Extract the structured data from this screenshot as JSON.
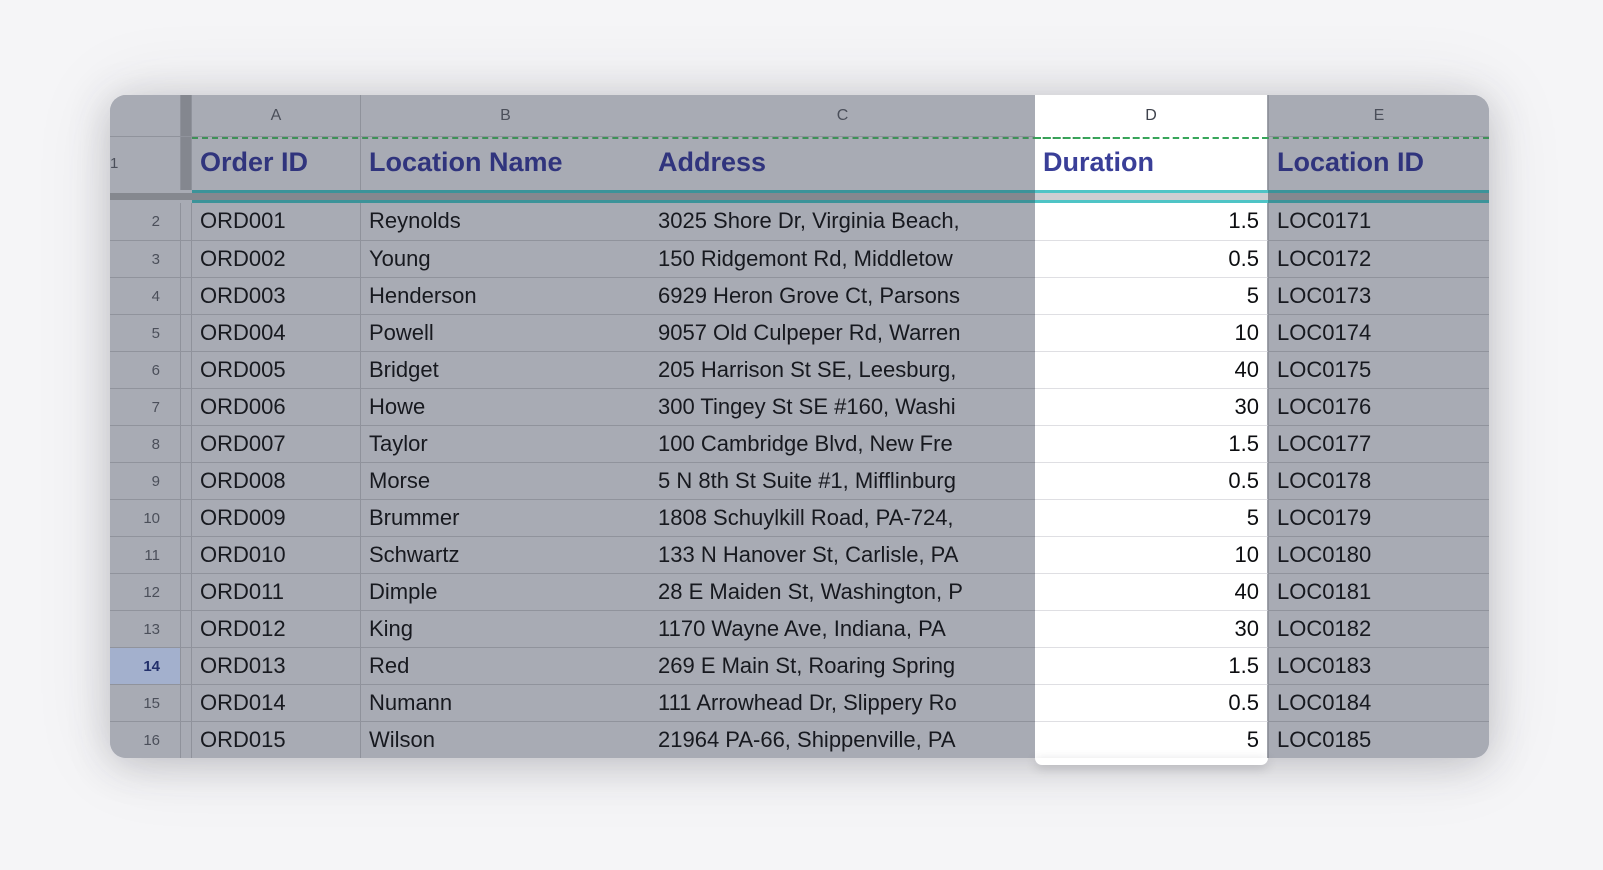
{
  "sheet": {
    "selected_column": "D",
    "selected_row_number": "14",
    "columns": [
      {
        "letter": "A",
        "header": "Order ID"
      },
      {
        "letter": "B",
        "header": "Location Name"
      },
      {
        "letter": "C",
        "header": "Address"
      },
      {
        "letter": "D",
        "header": "Duration"
      },
      {
        "letter": "E",
        "header": "Location ID"
      }
    ],
    "header_row": {
      "number": "1"
    },
    "rows": [
      {
        "number": "2",
        "order_id": "ORD001",
        "location_name": "Reynolds",
        "address": "3025 Shore Dr, Virginia Beach,",
        "duration": "1.5",
        "location_id": "LOC0171"
      },
      {
        "number": "3",
        "order_id": "ORD002",
        "location_name": "Young",
        "address": "150 Ridgemont Rd, Middletow",
        "duration": "0.5",
        "location_id": "LOC0172"
      },
      {
        "number": "4",
        "order_id": "ORD003",
        "location_name": "Henderson",
        "address": "6929 Heron Grove Ct, Parsons",
        "duration": "5",
        "location_id": "LOC0173"
      },
      {
        "number": "5",
        "order_id": "ORD004",
        "location_name": "Powell",
        "address": "9057 Old Culpeper Rd, Warren",
        "duration": "10",
        "location_id": "LOC0174"
      },
      {
        "number": "6",
        "order_id": "ORD005",
        "location_name": "Bridget",
        "address": "205 Harrison St SE, Leesburg,",
        "duration": "40",
        "location_id": "LOC0175"
      },
      {
        "number": "7",
        "order_id": "ORD006",
        "location_name": "Howe",
        "address": "300 Tingey St SE #160, Washi",
        "duration": "30",
        "location_id": "LOC0176"
      },
      {
        "number": "8",
        "order_id": "ORD007",
        "location_name": "Taylor",
        "address": "100 Cambridge Blvd, New Fre",
        "duration": "1.5",
        "location_id": "LOC0177"
      },
      {
        "number": "9",
        "order_id": "ORD008",
        "location_name": "Morse",
        "address": "5 N 8th St Suite #1, Mifflinburg",
        "duration": "0.5",
        "location_id": "LOC0178"
      },
      {
        "number": "10",
        "order_id": "ORD009",
        "location_name": "Brummer",
        "address": "1808 Schuylkill Road, PA-724,",
        "duration": "5",
        "location_id": "LOC0179"
      },
      {
        "number": "11",
        "order_id": "ORD010",
        "location_name": "Schwartz",
        "address": "133 N Hanover St, Carlisle, PA",
        "duration": "10",
        "location_id": "LOC0180"
      },
      {
        "number": "12",
        "order_id": "ORD011",
        "location_name": "Dimple",
        "address": "28 E Maiden St, Washington, P",
        "duration": "40",
        "location_id": "LOC0181"
      },
      {
        "number": "13",
        "order_id": "ORD012",
        "location_name": "King",
        "address": "1170 Wayne Ave, Indiana, PA",
        "duration": "30",
        "location_id": "LOC0182"
      },
      {
        "number": "14",
        "order_id": "ORD013",
        "location_name": "Red",
        "address": "269 E Main St, Roaring Spring",
        "duration": "1.5",
        "location_id": "LOC0183"
      },
      {
        "number": "15",
        "order_id": "ORD014",
        "location_name": "Numann",
        "address": "111 Arrowhead Dr, Slippery Ro",
        "duration": "0.5",
        "location_id": "LOC0184"
      },
      {
        "number": "16",
        "order_id": "ORD015",
        "location_name": "Wilson",
        "address": "21964 PA-66, Shippenville, PA",
        "duration": "5",
        "location_id": "LOC0185"
      }
    ]
  },
  "colors": {
    "accent_teal": "#3c9399",
    "accent_teal_bright": "#4fc4c6",
    "selection_dash_green": "#3f9158",
    "header_text_navy": "#30347d",
    "selected_column_bg": "#ffffff",
    "dimmed_cell_bg": "#a8abb4",
    "selected_row_gutter_bg": "#a3b0cd"
  }
}
